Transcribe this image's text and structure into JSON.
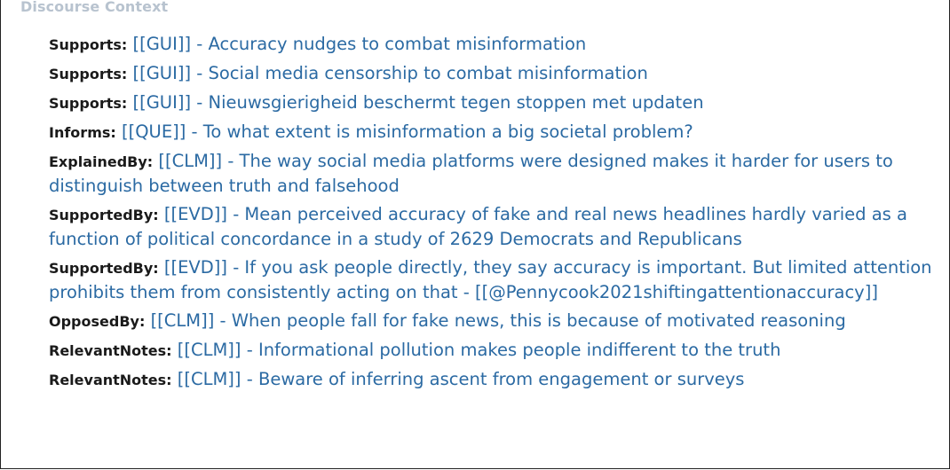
{
  "header": {
    "title": "Discourse Context"
  },
  "entries": [
    {
      "relation": "Supports:",
      "text": "[[GUI]] - Accuracy nudges to combat misinformation"
    },
    {
      "relation": "Supports:",
      "text": "[[GUI]] - Social media censorship to combat misinformation"
    },
    {
      "relation": "Supports:",
      "text": "[[GUI]] - Nieuwsgierigheid beschermt tegen stoppen met updaten"
    },
    {
      "relation": "Informs:",
      "text": "[[QUE]] - To what extent is misinformation a big societal problem?"
    },
    {
      "relation": "ExplainedBy:",
      "text": "[[CLM]] - The way social media platforms were designed makes it harder for users to distinguish between truth and falsehood"
    },
    {
      "relation": "SupportedBy:",
      "text": "[[EVD]] - Mean perceived accuracy of fake and real news headlines hardly varied as a function of political concordance in a study of 2629 Democrats and Republicans"
    },
    {
      "relation": "SupportedBy:",
      "text": "[[EVD]] - If you ask people directly, they say accuracy is important. But limited attention prohibits them from consistently acting on that - [[@Pennycook2021shiftingattentionaccuracy]]"
    },
    {
      "relation": "OpposedBy:",
      "text": "[[CLM]] - When people fall for fake news, this is because of motivated reasoning"
    },
    {
      "relation": "RelevantNotes:",
      "text": "[[CLM]] - Informational pollution makes people indifferent to the truth"
    },
    {
      "relation": "RelevantNotes:",
      "text": "[[CLM]] - Beware of inferring ascent from engagement or surveys"
    }
  ],
  "colors": {
    "link": "#2b6aa3",
    "relation": "#1a1a1a",
    "header": "#b8c3cf"
  }
}
